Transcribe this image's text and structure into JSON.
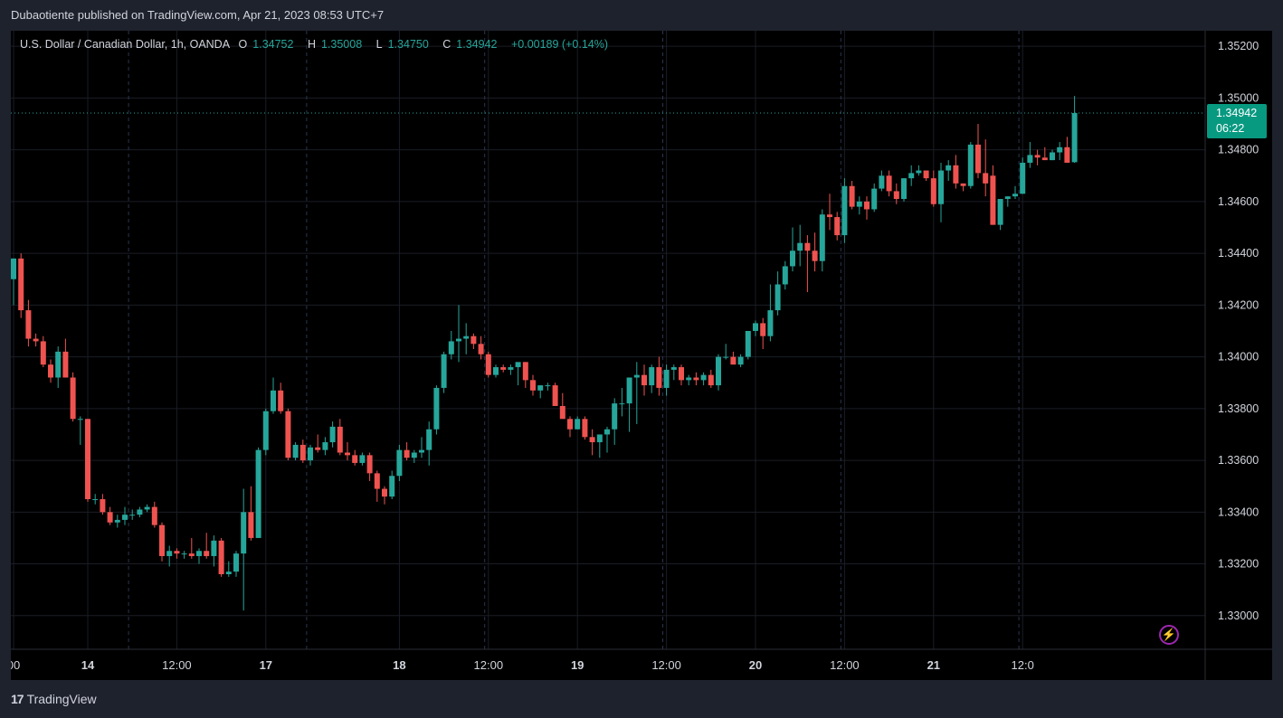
{
  "header": {
    "publisher_line": "Dubaotiente published on TradingView.com, Apr 21, 2023 08:53 UTC+7"
  },
  "legend": {
    "symbol": "U.S. Dollar / Canadian Dollar, 1h, OANDA",
    "o_label": "O",
    "o_value": "1.34752",
    "h_label": "H",
    "h_value": "1.35008",
    "l_label": "L",
    "l_value": "1.34750",
    "c_label": "C",
    "c_value": "1.34942",
    "change": "+0.00189 (+0.14%)"
  },
  "last_price": {
    "price": "1.34942",
    "countdown": "06:22"
  },
  "footer": {
    "brand": "TradingView"
  },
  "icons": {
    "logo": "tradingview-logo-icon",
    "flash": "lightning-icon"
  },
  "colors": {
    "up": "#26a69a",
    "down": "#ef5350",
    "background": "#000000",
    "frame": "#1e222d",
    "grid": "#1a1d26",
    "session_line": "#2a3550",
    "axis_text": "#d1d4dc",
    "price_tag": "#089981"
  },
  "chart_data": {
    "type": "candlestick",
    "title": "U.S. Dollar / Canadian Dollar, 1h, OANDA",
    "y_ticks": [
      "1.35200",
      "1.35000",
      "1.34800",
      "1.34600",
      "1.34400",
      "1.34200",
      "1.34000",
      "1.33800",
      "1.33600",
      "1.33400",
      "1.33200",
      "1.33000"
    ],
    "ylim": [
      1.3287,
      1.3526
    ],
    "x_ticks": [
      {
        "label": "00",
        "index": 0
      },
      {
        "label": "14",
        "index": 10
      },
      {
        "label": "12:00",
        "index": 22
      },
      {
        "label": "17",
        "index": 34
      },
      {
        "label": "18",
        "index": 52
      },
      {
        "label": "12:00",
        "index": 64
      },
      {
        "label": "19",
        "index": 76
      },
      {
        "label": "12:00",
        "index": 88
      },
      {
        "label": "20",
        "index": 100
      },
      {
        "label": "12:00",
        "index": 112
      },
      {
        "label": "21",
        "index": 124
      },
      {
        "label": "12:0",
        "index": 136
      }
    ],
    "session_breaks": [
      15.5,
      39.5,
      63.5,
      87.5,
      111.5,
      135.5
    ],
    "last_price": 1.34942,
    "grid": true,
    "candles": [
      [
        1.343,
        1.3438,
        1.342,
        1.3438
      ],
      [
        1.3438,
        1.344,
        1.3415,
        1.3418
      ],
      [
        1.3418,
        1.3422,
        1.3404,
        1.3407
      ],
      [
        1.3407,
        1.3409,
        1.3404,
        1.3406
      ],
      [
        1.3406,
        1.3408,
        1.3396,
        1.3397
      ],
      [
        1.3397,
        1.3399,
        1.339,
        1.3392
      ],
      [
        1.3392,
        1.3404,
        1.3388,
        1.3402
      ],
      [
        1.3402,
        1.3407,
        1.3392,
        1.3392
      ],
      [
        1.3392,
        1.3394,
        1.3375,
        1.3376
      ],
      [
        1.3376,
        1.3377,
        1.3366,
        1.3376
      ],
      [
        1.3376,
        1.3376,
        1.3344,
        1.3345
      ],
      [
        1.3345,
        1.3347,
        1.3343,
        1.3345
      ],
      [
        1.3345,
        1.3347,
        1.3339,
        1.334
      ],
      [
        1.334,
        1.3342,
        1.3335,
        1.3336
      ],
      [
        1.3336,
        1.3339,
        1.3334,
        1.3337
      ],
      [
        1.3337,
        1.3342,
        1.3335,
        1.3339
      ],
      [
        1.3339,
        1.3341,
        1.3337,
        1.3339
      ],
      [
        1.3339,
        1.3342,
        1.3338,
        1.3341
      ],
      [
        1.3341,
        1.3343,
        1.334,
        1.3342
      ],
      [
        1.3342,
        1.3344,
        1.3334,
        1.3335
      ],
      [
        1.3335,
        1.3336,
        1.3321,
        1.3323
      ],
      [
        1.3323,
        1.3327,
        1.3319,
        1.3325
      ],
      [
        1.3325,
        1.3326,
        1.3322,
        1.3324
      ],
      [
        1.3324,
        1.3325,
        1.3322,
        1.3324
      ],
      [
        1.3324,
        1.333,
        1.3322,
        1.3323
      ],
      [
        1.3323,
        1.3326,
        1.332,
        1.3325
      ],
      [
        1.3325,
        1.3332,
        1.3322,
        1.3323
      ],
      [
        1.3323,
        1.3331,
        1.3319,
        1.3329
      ],
      [
        1.3329,
        1.333,
        1.3315,
        1.3316
      ],
      [
        1.3316,
        1.3321,
        1.3315,
        1.3317
      ],
      [
        1.3317,
        1.3325,
        1.3315,
        1.3324
      ],
      [
        1.3324,
        1.3349,
        1.3302,
        1.334
      ],
      [
        1.334,
        1.335,
        1.3329,
        1.333
      ],
      [
        1.333,
        1.3365,
        1.333,
        1.3364
      ],
      [
        1.3364,
        1.338,
        1.3362,
        1.3379
      ],
      [
        1.3379,
        1.3392,
        1.3378,
        1.3387
      ],
      [
        1.3387,
        1.339,
        1.3378,
        1.3379
      ],
      [
        1.3379,
        1.338,
        1.336,
        1.3361
      ],
      [
        1.3361,
        1.3367,
        1.336,
        1.3366
      ],
      [
        1.3366,
        1.3368,
        1.3359,
        1.336
      ],
      [
        1.336,
        1.3366,
        1.3358,
        1.3365
      ],
      [
        1.3365,
        1.337,
        1.3363,
        1.3364
      ],
      [
        1.3364,
        1.3369,
        1.3362,
        1.3367
      ],
      [
        1.3367,
        1.3375,
        1.3365,
        1.3373
      ],
      [
        1.3373,
        1.3376,
        1.3362,
        1.3363
      ],
      [
        1.3363,
        1.3367,
        1.336,
        1.3362
      ],
      [
        1.3362,
        1.3364,
        1.3358,
        1.3359
      ],
      [
        1.3359,
        1.3363,
        1.3358,
        1.3362
      ],
      [
        1.3362,
        1.3363,
        1.3352,
        1.3355
      ],
      [
        1.3355,
        1.3356,
        1.3344,
        1.3349
      ],
      [
        1.3349,
        1.335,
        1.3343,
        1.3346
      ],
      [
        1.3346,
        1.3356,
        1.3345,
        1.3354
      ],
      [
        1.3354,
        1.3366,
        1.3352,
        1.3364
      ],
      [
        1.3364,
        1.3367,
        1.336,
        1.3361
      ],
      [
        1.3361,
        1.3364,
        1.3359,
        1.3363
      ],
      [
        1.3363,
        1.3369,
        1.3361,
        1.3364
      ],
      [
        1.3364,
        1.3375,
        1.3358,
        1.3372
      ],
      [
        1.3372,
        1.3389,
        1.337,
        1.3388
      ],
      [
        1.3388,
        1.3402,
        1.3386,
        1.3401
      ],
      [
        1.3401,
        1.341,
        1.3399,
        1.3406
      ],
      [
        1.3406,
        1.342,
        1.3398,
        1.3407
      ],
      [
        1.3407,
        1.3413,
        1.3401,
        1.3408
      ],
      [
        1.3408,
        1.3409,
        1.3403,
        1.3405
      ],
      [
        1.3405,
        1.3408,
        1.3399,
        1.3401
      ],
      [
        1.3401,
        1.3402,
        1.3392,
        1.3393
      ],
      [
        1.3393,
        1.3397,
        1.3392,
        1.3396
      ],
      [
        1.3396,
        1.3397,
        1.3394,
        1.3395
      ],
      [
        1.3395,
        1.3397,
        1.3393,
        1.3396
      ],
      [
        1.3396,
        1.3397,
        1.3389,
        1.3398
      ],
      [
        1.3398,
        1.3396,
        1.3388,
        1.3391
      ],
      [
        1.3391,
        1.3393,
        1.3385,
        1.3387
      ],
      [
        1.3387,
        1.3389,
        1.3384,
        1.3389
      ],
      [
        1.3389,
        1.339,
        1.3387,
        1.3389
      ],
      [
        1.3389,
        1.339,
        1.3381,
        1.3381
      ],
      [
        1.3381,
        1.3386,
        1.3377,
        1.3376
      ],
      [
        1.3376,
        1.3377,
        1.3369,
        1.3372
      ],
      [
        1.3372,
        1.3377,
        1.3372,
        1.3376
      ],
      [
        1.3376,
        1.3377,
        1.3368,
        1.3369
      ],
      [
        1.3369,
        1.3372,
        1.3362,
        1.3367
      ],
      [
        1.3367,
        1.337,
        1.3361,
        1.337
      ],
      [
        1.337,
        1.3373,
        1.3363,
        1.3372
      ],
      [
        1.3372,
        1.3384,
        1.3366,
        1.3382
      ],
      [
        1.3382,
        1.3388,
        1.3377,
        1.3382
      ],
      [
        1.3382,
        1.3392,
        1.3371,
        1.3392
      ],
      [
        1.3392,
        1.3398,
        1.3374,
        1.3393
      ],
      [
        1.3393,
        1.3397,
        1.3385,
        1.3389
      ],
      [
        1.3389,
        1.3397,
        1.3386,
        1.3396
      ],
      [
        1.3396,
        1.34,
        1.3385,
        1.3388
      ],
      [
        1.3388,
        1.3397,
        1.3385,
        1.3395
      ],
      [
        1.3395,
        1.3397,
        1.3391,
        1.3396
      ],
      [
        1.3396,
        1.3397,
        1.3389,
        1.3391
      ],
      [
        1.3391,
        1.3393,
        1.3389,
        1.3392
      ],
      [
        1.3392,
        1.3394,
        1.3389,
        1.3391
      ],
      [
        1.3391,
        1.3394,
        1.3389,
        1.3393
      ],
      [
        1.3393,
        1.3395,
        1.3388,
        1.3389
      ],
      [
        1.3389,
        1.3401,
        1.3387,
        1.34
      ],
      [
        1.34,
        1.3405,
        1.3399,
        1.34
      ],
      [
        1.34,
        1.3402,
        1.3398,
        1.3397
      ],
      [
        1.3397,
        1.3401,
        1.3396,
        1.34
      ],
      [
        1.34,
        1.341,
        1.3399,
        1.341
      ],
      [
        1.341,
        1.3414,
        1.3408,
        1.3413
      ],
      [
        1.3413,
        1.3415,
        1.3403,
        1.3408
      ],
      [
        1.3408,
        1.3428,
        1.3406,
        1.3418
      ],
      [
        1.3418,
        1.3433,
        1.3416,
        1.3428
      ],
      [
        1.3428,
        1.3437,
        1.3426,
        1.3435
      ],
      [
        1.3435,
        1.345,
        1.3433,
        1.3441
      ],
      [
        1.3441,
        1.3451,
        1.3435,
        1.3444
      ],
      [
        1.3444,
        1.3447,
        1.3425,
        1.3441
      ],
      [
        1.3441,
        1.3448,
        1.3433,
        1.3437
      ],
      [
        1.3437,
        1.3457,
        1.3433,
        1.3455
      ],
      [
        1.3455,
        1.3463,
        1.3449,
        1.3454
      ],
      [
        1.3454,
        1.3456,
        1.3445,
        1.3447
      ],
      [
        1.3447,
        1.3469,
        1.3444,
        1.3466
      ],
      [
        1.3466,
        1.3468,
        1.3457,
        1.3458
      ],
      [
        1.3458,
        1.3462,
        1.3455,
        1.346
      ],
      [
        1.346,
        1.3462,
        1.3453,
        1.3457
      ],
      [
        1.3457,
        1.3467,
        1.3456,
        1.3465
      ],
      [
        1.3465,
        1.3472,
        1.3464,
        1.347
      ],
      [
        1.347,
        1.3472,
        1.3462,
        1.3464
      ],
      [
        1.3464,
        1.3467,
        1.3459,
        1.3461
      ],
      [
        1.3461,
        1.3469,
        1.346,
        1.3469
      ],
      [
        1.3469,
        1.3474,
        1.3466,
        1.3471
      ],
      [
        1.3471,
        1.3474,
        1.347,
        1.3472
      ],
      [
        1.3472,
        1.3472,
        1.3468,
        1.3469
      ],
      [
        1.3469,
        1.3472,
        1.3458,
        1.3459
      ],
      [
        1.3459,
        1.3475,
        1.3452,
        1.3472
      ],
      [
        1.3472,
        1.3476,
        1.3468,
        1.3474
      ],
      [
        1.3474,
        1.3478,
        1.3465,
        1.3467
      ],
      [
        1.3467,
        1.3467,
        1.3464,
        1.3466
      ],
      [
        1.3466,
        1.3483,
        1.3465,
        1.3482
      ],
      [
        1.3482,
        1.349,
        1.3469,
        1.3471
      ],
      [
        1.3471,
        1.3484,
        1.3462,
        1.3467
      ]
    ],
    "final_candles": [
      [
        1.347,
        1.3474,
        1.3451,
        1.3451
      ],
      [
        1.3451,
        1.3461,
        1.3449,
        1.3461
      ],
      [
        1.3461,
        1.3462,
        1.3458,
        1.3462
      ],
      [
        1.3462,
        1.3466,
        1.3461,
        1.3463
      ],
      [
        1.3463,
        1.3477,
        1.3463,
        1.3475
      ],
      [
        1.3475,
        1.3483,
        1.3473,
        1.3478
      ],
      [
        1.3478,
        1.348,
        1.3474,
        1.3477
      ],
      [
        1.3477,
        1.3481,
        1.3477,
        1.3476
      ],
      [
        1.3476,
        1.348,
        1.3476,
        1.3479
      ],
      [
        1.3479,
        1.3483,
        1.3476,
        1.3481
      ],
      [
        1.3481,
        1.3485,
        1.3475,
        1.3475
      ],
      [
        1.34752,
        1.35008,
        1.3475,
        1.34942
      ]
    ]
  }
}
